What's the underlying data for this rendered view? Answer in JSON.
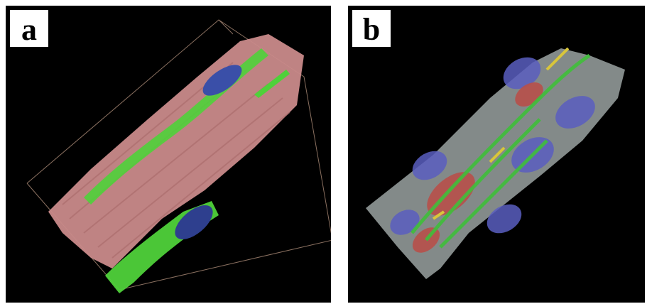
{
  "panels": [
    {
      "label": "a"
    },
    {
      "label": "b"
    }
  ],
  "colors": {
    "background": "#000000",
    "muscle_pink": "#c98a8a",
    "membrane_green": "#4fd13a",
    "nucleus_blue": "#3a4fa8",
    "tissue_gray": "#8a9190",
    "cell_red": "#b8504a",
    "nucleus_purple": "#5a5ec0",
    "fiber_yellow": "#d9c63a"
  }
}
